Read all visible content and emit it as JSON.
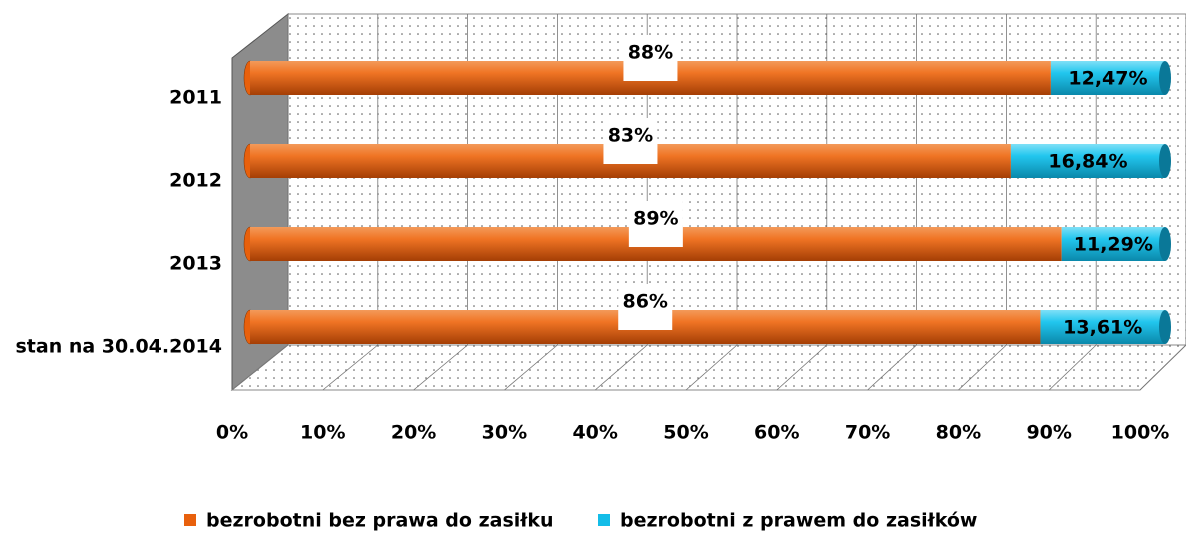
{
  "chart_data": {
    "type": "bar",
    "orientation": "horizontal",
    "stacked": true,
    "categories": [
      "2011",
      "2012",
      "2013",
      "stan na 30.04.2014"
    ],
    "series": [
      {
        "name": "bezrobotni bez prawa do zasiłku",
        "color": "#e8600c",
        "values": [
          87.53,
          83.16,
          88.71,
          86.39
        ],
        "value_labels": [
          "88%",
          "83%",
          "89%",
          "86%"
        ]
      },
      {
        "name": "bezrobotni z prawem do zasiłków",
        "color": "#14bde8",
        "values": [
          12.47,
          16.84,
          11.29,
          13.61
        ],
        "value_labels": [
          "12,47%",
          "16,84%",
          "11,29%",
          "13,61%"
        ]
      }
    ],
    "xlim": [
      0,
      100
    ],
    "xticks": [
      {
        "value": 0,
        "label": "0%"
      },
      {
        "value": 10,
        "label": "10%"
      },
      {
        "value": 20,
        "label": "20%"
      },
      {
        "value": 30,
        "label": "30%"
      },
      {
        "value": 40,
        "label": "40%"
      },
      {
        "value": 50,
        "label": "50%"
      },
      {
        "value": 60,
        "label": "60%"
      },
      {
        "value": 70,
        "label": "70%"
      },
      {
        "value": 80,
        "label": "80%"
      },
      {
        "value": 90,
        "label": "90%"
      },
      {
        "value": 100,
        "label": "100%"
      }
    ],
    "grid": true,
    "legend": "bottom"
  }
}
